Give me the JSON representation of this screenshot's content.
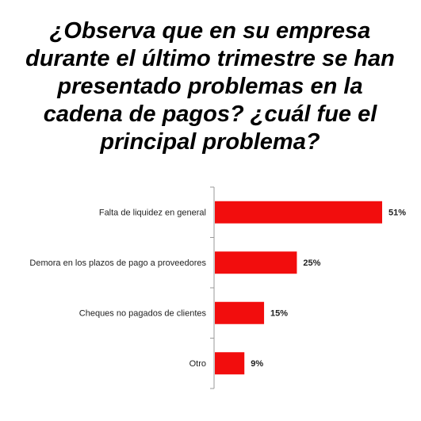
{
  "chart_data": {
    "type": "bar",
    "orientation": "horizontal",
    "title": "¿Observa que en su empresa durante el último trimestre se han presentado problemas en la cadena de pagos? ¿cuál fue el principal problema?",
    "categories": [
      "Falta de liquidez en general",
      "Demora en los plazos de pago a proveedores",
      "Cheques no pagados de clientes",
      "Otro"
    ],
    "values": [
      51,
      25,
      15,
      9
    ],
    "value_labels": [
      "51%",
      "25%",
      "15%",
      "9%"
    ],
    "color": "#f20d0d"
  }
}
